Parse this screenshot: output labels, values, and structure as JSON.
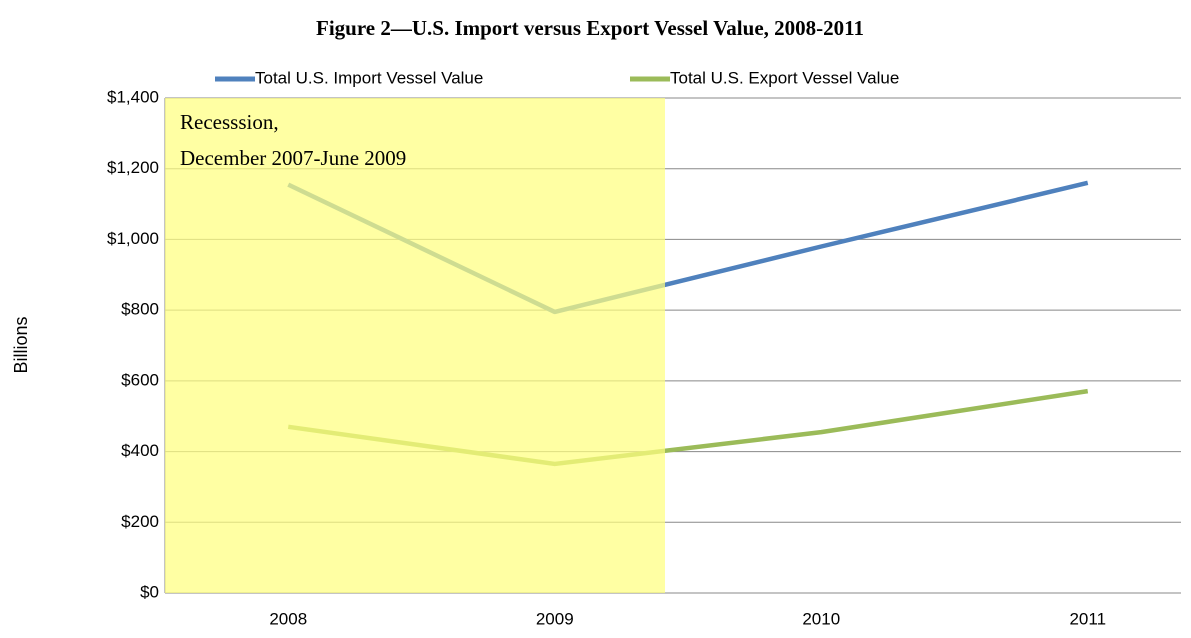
{
  "chart_data": {
    "type": "line",
    "title": "Figure 2—U.S. Import versus Export Vessel Value, 2008-2011",
    "y_label": "Billions",
    "annotation": [
      "Recesssion,",
      "December 2007-June 2009"
    ],
    "categories": [
      "2008",
      "2009",
      "2010",
      "2011"
    ],
    "series": [
      {
        "name": "Total U.S. Import Vessel Value",
        "color": "#4f81bd",
        "values": [
          1155,
          795,
          980,
          1160
        ]
      },
      {
        "name": "Total U.S. Export Vessel Value",
        "color": "#9bbb59",
        "values": [
          470,
          365,
          455,
          571
        ]
      }
    ],
    "ylim": [
      0,
      1400
    ],
    "yticks": [
      {
        "value": 0,
        "label": "$0"
      },
      {
        "value": 200,
        "label": "$200"
      },
      {
        "value": 400,
        "label": "$400"
      },
      {
        "value": 600,
        "label": "$600"
      },
      {
        "value": 800,
        "label": "$800"
      },
      {
        "value": 1000,
        "label": "$1,000"
      },
      {
        "value": 1200,
        "label": "$1,200"
      },
      {
        "value": 1400,
        "label": "$1,400"
      }
    ],
    "grid": true,
    "legend": "top"
  }
}
